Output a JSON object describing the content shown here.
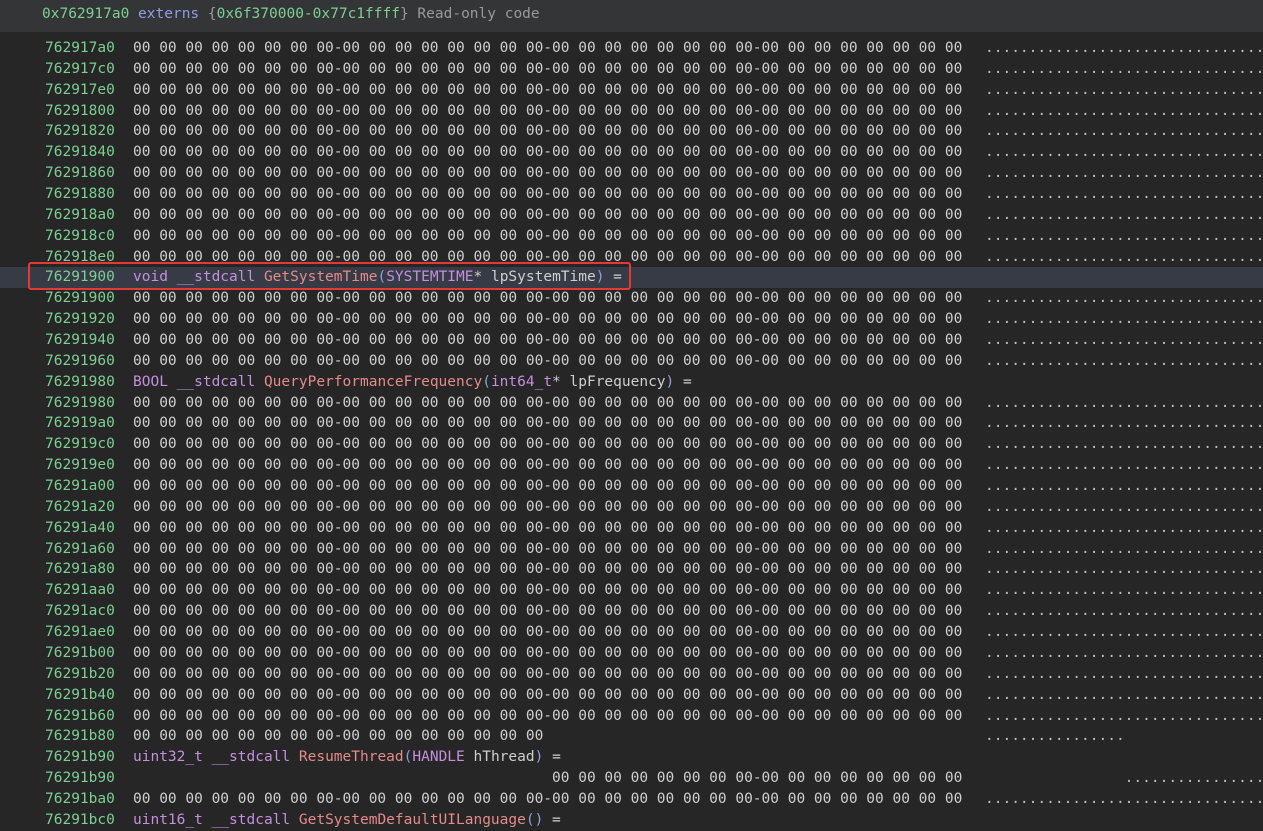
{
  "header": {
    "address": "0x762917a0",
    "section": "externs",
    "open_brace": "{",
    "range": "0x6f370000-0x77c1ffff",
    "close_brace": "}",
    "semantics": "Read-only code"
  },
  "colors": {
    "address": "#7ccf93",
    "highlight_box": "#e53935",
    "highlight_row": "#373b46"
  },
  "rows": [
    {
      "kind": "hex",
      "addr": "762917a0",
      "hex": "00 00 00 00 00 00 00 00-00 00 00 00 00 00 00 00-00 00 00 00 00 00 00 00-00 00 00 00 00 00 00 00",
      "ascii": "................................"
    },
    {
      "kind": "hex",
      "addr": "762917c0",
      "hex": "00 00 00 00 00 00 00 00-00 00 00 00 00 00 00 00-00 00 00 00 00 00 00 00-00 00 00 00 00 00 00 00",
      "ascii": "................................"
    },
    {
      "kind": "hex",
      "addr": "762917e0",
      "hex": "00 00 00 00 00 00 00 00-00 00 00 00 00 00 00 00-00 00 00 00 00 00 00 00-00 00 00 00 00 00 00 00",
      "ascii": "................................"
    },
    {
      "kind": "hex",
      "addr": "76291800",
      "hex": "00 00 00 00 00 00 00 00-00 00 00 00 00 00 00 00-00 00 00 00 00 00 00 00-00 00 00 00 00 00 00 00",
      "ascii": "................................"
    },
    {
      "kind": "hex",
      "addr": "76291820",
      "hex": "00 00 00 00 00 00 00 00-00 00 00 00 00 00 00 00-00 00 00 00 00 00 00 00-00 00 00 00 00 00 00 00",
      "ascii": "................................"
    },
    {
      "kind": "hex",
      "addr": "76291840",
      "hex": "00 00 00 00 00 00 00 00-00 00 00 00 00 00 00 00-00 00 00 00 00 00 00 00-00 00 00 00 00 00 00 00",
      "ascii": "................................"
    },
    {
      "kind": "hex",
      "addr": "76291860",
      "hex": "00 00 00 00 00 00 00 00-00 00 00 00 00 00 00 00-00 00 00 00 00 00 00 00-00 00 00 00 00 00 00 00",
      "ascii": "................................"
    },
    {
      "kind": "hex",
      "addr": "76291880",
      "hex": "00 00 00 00 00 00 00 00-00 00 00 00 00 00 00 00-00 00 00 00 00 00 00 00-00 00 00 00 00 00 00 00",
      "ascii": "................................"
    },
    {
      "kind": "hex",
      "addr": "762918a0",
      "hex": "00 00 00 00 00 00 00 00-00 00 00 00 00 00 00 00-00 00 00 00 00 00 00 00-00 00 00 00 00 00 00 00",
      "ascii": "................................"
    },
    {
      "kind": "hex",
      "addr": "762918c0",
      "hex": "00 00 00 00 00 00 00 00-00 00 00 00 00 00 00 00-00 00 00 00 00 00 00 00-00 00 00 00 00 00 00 00",
      "ascii": "................................"
    },
    {
      "kind": "hex",
      "addr": "762918e0",
      "hex": "00 00 00 00 00 00 00 00-00 00 00 00 00 00 00 00-00 00 00 00 00 00 00 00-00 00 00 00 00 00 00 00",
      "ascii": "................................"
    },
    {
      "kind": "func",
      "addr": "76291900",
      "highlighted": true,
      "parts": [
        {
          "c": "kw",
          "t": "void __stdcall "
        },
        {
          "c": "name",
          "t": "GetSystemTime"
        },
        {
          "c": "paren",
          "t": "("
        },
        {
          "c": "typ",
          "t": "SYSTEMTIME"
        },
        {
          "c": "txt",
          "t": "* lpSystemTime"
        },
        {
          "c": "paren",
          "t": ")"
        },
        {
          "c": "txt",
          "t": " ="
        }
      ]
    },
    {
      "kind": "hex",
      "addr": "76291900",
      "hex": "00 00 00 00 00 00 00 00-00 00 00 00 00 00 00 00-00 00 00 00 00 00 00 00-00 00 00 00 00 00 00 00",
      "ascii": "................................"
    },
    {
      "kind": "hex",
      "addr": "76291920",
      "hex": "00 00 00 00 00 00 00 00-00 00 00 00 00 00 00 00-00 00 00 00 00 00 00 00-00 00 00 00 00 00 00 00",
      "ascii": "................................"
    },
    {
      "kind": "hex",
      "addr": "76291940",
      "hex": "00 00 00 00 00 00 00 00-00 00 00 00 00 00 00 00-00 00 00 00 00 00 00 00-00 00 00 00 00 00 00 00",
      "ascii": "................................"
    },
    {
      "kind": "hex",
      "addr": "76291960",
      "hex": "00 00 00 00 00 00 00 00-00 00 00 00 00 00 00 00-00 00 00 00 00 00 00 00-00 00 00 00 00 00 00 00",
      "ascii": "................................"
    },
    {
      "kind": "func",
      "addr": "76291980",
      "parts": [
        {
          "c": "kw",
          "t": "BOOL __stdcall "
        },
        {
          "c": "name",
          "t": "QueryPerformanceFrequency"
        },
        {
          "c": "paren",
          "t": "("
        },
        {
          "c": "typ",
          "t": "int64_t"
        },
        {
          "c": "txt",
          "t": "* lpFrequency"
        },
        {
          "c": "paren",
          "t": ")"
        },
        {
          "c": "txt",
          "t": " ="
        }
      ]
    },
    {
      "kind": "hex",
      "addr": "76291980",
      "hex": "00 00 00 00 00 00 00 00-00 00 00 00 00 00 00 00-00 00 00 00 00 00 00 00-00 00 00 00 00 00 00 00",
      "ascii": "................................"
    },
    {
      "kind": "hex",
      "addr": "762919a0",
      "hex": "00 00 00 00 00 00 00 00-00 00 00 00 00 00 00 00-00 00 00 00 00 00 00 00-00 00 00 00 00 00 00 00",
      "ascii": "................................"
    },
    {
      "kind": "hex",
      "addr": "762919c0",
      "hex": "00 00 00 00 00 00 00 00-00 00 00 00 00 00 00 00-00 00 00 00 00 00 00 00-00 00 00 00 00 00 00 00",
      "ascii": "................................"
    },
    {
      "kind": "hex",
      "addr": "762919e0",
      "hex": "00 00 00 00 00 00 00 00-00 00 00 00 00 00 00 00-00 00 00 00 00 00 00 00-00 00 00 00 00 00 00 00",
      "ascii": "................................"
    },
    {
      "kind": "hex",
      "addr": "76291a00",
      "hex": "00 00 00 00 00 00 00 00-00 00 00 00 00 00 00 00-00 00 00 00 00 00 00 00-00 00 00 00 00 00 00 00",
      "ascii": "................................"
    },
    {
      "kind": "hex",
      "addr": "76291a20",
      "hex": "00 00 00 00 00 00 00 00-00 00 00 00 00 00 00 00-00 00 00 00 00 00 00 00-00 00 00 00 00 00 00 00",
      "ascii": "................................"
    },
    {
      "kind": "hex",
      "addr": "76291a40",
      "hex": "00 00 00 00 00 00 00 00-00 00 00 00 00 00 00 00-00 00 00 00 00 00 00 00-00 00 00 00 00 00 00 00",
      "ascii": "................................"
    },
    {
      "kind": "hex",
      "addr": "76291a60",
      "hex": "00 00 00 00 00 00 00 00-00 00 00 00 00 00 00 00-00 00 00 00 00 00 00 00-00 00 00 00 00 00 00 00",
      "ascii": "................................"
    },
    {
      "kind": "hex",
      "addr": "76291a80",
      "hex": "00 00 00 00 00 00 00 00-00 00 00 00 00 00 00 00-00 00 00 00 00 00 00 00-00 00 00 00 00 00 00 00",
      "ascii": "................................"
    },
    {
      "kind": "hex",
      "addr": "76291aa0",
      "hex": "00 00 00 00 00 00 00 00-00 00 00 00 00 00 00 00-00 00 00 00 00 00 00 00-00 00 00 00 00 00 00 00",
      "ascii": "................................"
    },
    {
      "kind": "hex",
      "addr": "76291ac0",
      "hex": "00 00 00 00 00 00 00 00-00 00 00 00 00 00 00 00-00 00 00 00 00 00 00 00-00 00 00 00 00 00 00 00",
      "ascii": "................................"
    },
    {
      "kind": "hex",
      "addr": "76291ae0",
      "hex": "00 00 00 00 00 00 00 00-00 00 00 00 00 00 00 00-00 00 00 00 00 00 00 00-00 00 00 00 00 00 00 00",
      "ascii": "................................"
    },
    {
      "kind": "hex",
      "addr": "76291b00",
      "hex": "00 00 00 00 00 00 00 00-00 00 00 00 00 00 00 00-00 00 00 00 00 00 00 00-00 00 00 00 00 00 00 00",
      "ascii": "................................"
    },
    {
      "kind": "hex",
      "addr": "76291b20",
      "hex": "00 00 00 00 00 00 00 00-00 00 00 00 00 00 00 00-00 00 00 00 00 00 00 00-00 00 00 00 00 00 00 00",
      "ascii": "................................"
    },
    {
      "kind": "hex",
      "addr": "76291b40",
      "hex": "00 00 00 00 00 00 00 00-00 00 00 00 00 00 00 00-00 00 00 00 00 00 00 00-00 00 00 00 00 00 00 00",
      "ascii": "................................"
    },
    {
      "kind": "hex",
      "addr": "76291b60",
      "hex": "00 00 00 00 00 00 00 00-00 00 00 00 00 00 00 00-00 00 00 00 00 00 00 00-00 00 00 00 00 00 00 00",
      "ascii": "................................"
    },
    {
      "kind": "hex",
      "addr": "76291b80",
      "hex": "00 00 00 00 00 00 00 00-00 00 00 00 00 00 00 00",
      "ascii": "................"
    },
    {
      "kind": "func",
      "addr": "76291b90",
      "parts": [
        {
          "c": "kw",
          "t": "uint32_t __stdcall "
        },
        {
          "c": "name",
          "t": "ResumeThread"
        },
        {
          "c": "paren",
          "t": "("
        },
        {
          "c": "typ",
          "t": "HANDLE"
        },
        {
          "c": "txt",
          "t": " hThread"
        },
        {
          "c": "paren",
          "t": ")"
        },
        {
          "c": "txt",
          "t": " ="
        }
      ]
    },
    {
      "kind": "hex",
      "addr": "76291b90",
      "byte_offset": 16,
      "hex": "00 00 00 00 00 00 00 00-00 00 00 00 00 00 00 00",
      "ascii": "................"
    },
    {
      "kind": "hex",
      "addr": "76291ba0",
      "hex": "00 00 00 00 00 00 00 00-00 00 00 00 00 00 00 00-00 00 00 00 00 00 00 00-00 00 00 00 00 00 00 00",
      "ascii": "................................"
    },
    {
      "kind": "func",
      "addr": "76291bc0",
      "parts": [
        {
          "c": "kw",
          "t": "uint16_t __stdcall "
        },
        {
          "c": "name",
          "t": "GetSystemDefaultUILanguage"
        },
        {
          "c": "paren",
          "t": "()"
        },
        {
          "c": "txt",
          "t": " ="
        }
      ]
    }
  ]
}
